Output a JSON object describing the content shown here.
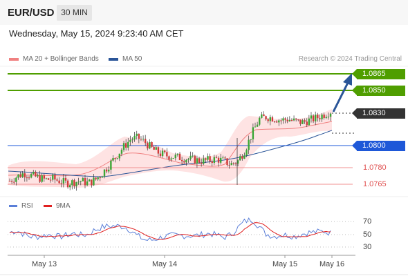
{
  "header": {
    "symbol": "EUR/USD",
    "timeframe": "30 MIN"
  },
  "datetime": "Wednesday, May 15, 2024 9:23:40 AM CET",
  "legend": {
    "ma20": {
      "label": "MA 20 + Bollinger Bands",
      "color": "#f08080"
    },
    "ma50": {
      "label": "MA 50",
      "color": "#2a5598"
    }
  },
  "source": "Research © 2024 Trading Central",
  "rsi_legend": {
    "rsi": {
      "label": "RSI",
      "color": "#5b7fd8"
    },
    "ma": {
      "label": "9MA",
      "color": "#e02020"
    }
  },
  "price_levels": [
    {
      "value": "1.0865",
      "kind": "resistance",
      "color": "#4f9e00"
    },
    {
      "value": "1.0850",
      "kind": "resistance",
      "color": "#4f9e00"
    },
    {
      "value": "1.0830",
      "kind": "last",
      "color": "#333333"
    },
    {
      "value": "1.0800",
      "kind": "pivot",
      "color": "#1e58d8"
    },
    {
      "value": "1.0780",
      "kind": "support",
      "color": "#e05252"
    },
    {
      "value": "1.0765",
      "kind": "support",
      "color": "#e05252"
    }
  ],
  "rsi_levels": [
    "70",
    "50",
    "30"
  ],
  "x_labels": [
    "May 13",
    "May 14",
    "May 15",
    "May 16"
  ],
  "chart_data": {
    "type": "candlestick",
    "interval": "30 MIN",
    "x_labels": [
      "May 13",
      "May 14",
      "May 15",
      "May 16"
    ],
    "price_series": [
      1.0768,
      1.0772,
      1.0775,
      1.0773,
      1.0771,
      1.0769,
      1.077,
      1.0768,
      1.0766,
      1.0767,
      1.0768,
      1.0766,
      1.0769,
      1.0775,
      1.0783,
      1.0791,
      1.0799,
      1.0806,
      1.0807,
      1.0803,
      1.0797,
      1.0793,
      1.0791,
      1.079,
      1.0789,
      1.0788,
      1.0787,
      1.0786,
      1.0787,
      1.0788,
      1.0786,
      1.0783,
      1.0786,
      1.0796,
      1.0811,
      1.0824,
      1.0826,
      1.0825,
      1.0823,
      1.0824,
      1.0822,
      1.0821,
      1.0823,
      1.0825,
      1.0828,
      1.0831
    ],
    "annotations": [
      "1.0865",
      "1.0850",
      "1.0830",
      "1.0800",
      "1.0780",
      "1.0765"
    ],
    "indicators": [
      "MA 20 + Bollinger Bands",
      "MA 50",
      "RSI",
      "9MA"
    ],
    "rsi_ylim": [
      30,
      70
    ]
  }
}
